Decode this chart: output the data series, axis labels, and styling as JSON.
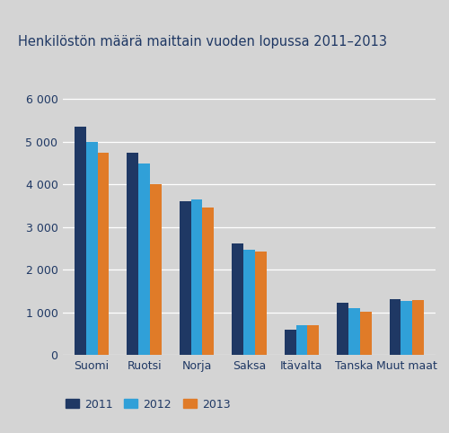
{
  "title": "Henkilöstön määrä maittain vuoden lopussa 2011–2013",
  "categories": [
    "Suomi",
    "Ruotsi",
    "Norja",
    "Saksa",
    "Itävalta",
    "Tanska",
    "Muut maat"
  ],
  "series": {
    "2011": [
      5350,
      4750,
      3600,
      2620,
      600,
      1230,
      1310
    ],
    "2012": [
      5000,
      4500,
      3650,
      2470,
      700,
      1100,
      1260
    ],
    "2013": [
      4750,
      4000,
      3470,
      2420,
      700,
      1010,
      1280
    ]
  },
  "colors": {
    "2011": "#1f3864",
    "2012": "#30a0d8",
    "2013": "#e07b28"
  },
  "legend_labels": [
    "2011",
    "2012",
    "2013"
  ],
  "ylim": [
    0,
    6500
  ],
  "yticks": [
    0,
    1000,
    2000,
    3000,
    4000,
    5000,
    6000
  ],
  "ytick_labels": [
    "0",
    "1 000",
    "2 000",
    "3 000",
    "4 000",
    "5 000",
    "6 000"
  ],
  "background_color": "#d4d4d4",
  "plot_bg_color": "#d4d4d4",
  "grid_color": "#ffffff",
  "title_color": "#1f3864",
  "tick_color": "#1f3864",
  "title_fontsize": 10.5,
  "tick_fontsize": 9,
  "legend_fontsize": 9,
  "bar_width": 0.22
}
